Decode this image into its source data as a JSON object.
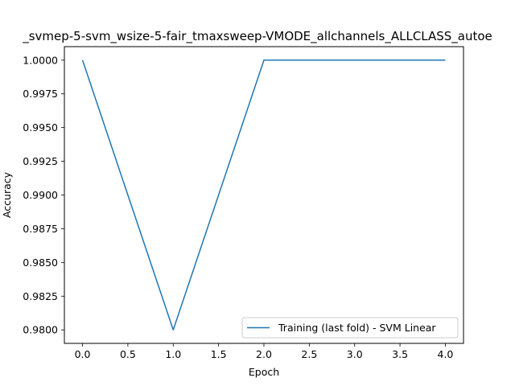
{
  "chart_data": {
    "type": "line",
    "title": "_svmep-5-svm_wsize-5-fair_tmaxsweep-VMODE_allchannels_ALLCLASS_autoe",
    "xlabel": "Epoch",
    "ylabel": "Accuracy",
    "xlim": [
      -0.2,
      4.2
    ],
    "ylim": [
      0.979,
      1.001
    ],
    "xticks": [
      0.0,
      0.5,
      1.0,
      1.5,
      2.0,
      2.5,
      3.0,
      3.5,
      4.0
    ],
    "xtick_labels": [
      "0.0",
      "0.5",
      "1.0",
      "1.5",
      "2.0",
      "2.5",
      "3.0",
      "3.5",
      "4.0"
    ],
    "yticks": [
      0.98,
      0.9825,
      0.985,
      0.9875,
      0.99,
      0.9925,
      0.995,
      0.9975,
      1.0
    ],
    "ytick_labels": [
      "0.9800",
      "0.9825",
      "0.9850",
      "0.9875",
      "0.9900",
      "0.9925",
      "0.9950",
      "0.9975",
      "1.0000"
    ],
    "grid": false,
    "legend_position": "lower-right",
    "series": [
      {
        "name": "Training (last fold) - SVM Linear",
        "color": "#1f77b4",
        "x": [
          0,
          1,
          2,
          3,
          4
        ],
        "y": [
          1.0,
          0.98,
          1.0,
          1.0,
          1.0
        ]
      }
    ]
  }
}
